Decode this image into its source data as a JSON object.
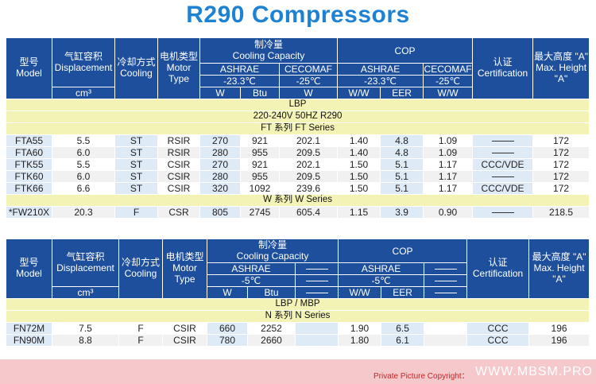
{
  "title": "R290 Compressors",
  "headers": {
    "model": [
      "型号",
      "Model"
    ],
    "displacement": [
      "气缸容积",
      "Displacement"
    ],
    "cooling": [
      "冷却方式",
      "Cooling"
    ],
    "motor": [
      "电机类型",
      "Motor",
      "Type"
    ],
    "capacity": [
      "制冷量",
      "Cooling Capacity"
    ],
    "cop": "COP",
    "cert": [
      "认证",
      "Certification"
    ],
    "height": [
      "最大高度 \"A\"",
      "Max. Height",
      "\"A\""
    ],
    "ashrae": "ASHRAE",
    "cecomaf": "CECOMAF",
    "temp_t1_ashrae": "-23.3℃",
    "temp_t1_cecomaf": "-25℃",
    "temp_t2": "-5℃",
    "unit_cm3": "cm³",
    "unit_w": "W",
    "unit_btu": "Btu",
    "unit_ww": "W/W",
    "unit_eer": "EER"
  },
  "table1": {
    "band1": "LBP",
    "band2": "220-240V 50HZ R290",
    "series1": "FT 系列 FT Series",
    "series2": "W 系列 W Series",
    "rows": [
      {
        "model": "FTA55",
        "disp": "5.5",
        "cool": "ST",
        "motor": "RSIR",
        "ash_w": "270",
        "ash_btu": "921",
        "cec_w": "202.1",
        "cop_ww": "1.40",
        "cop_eer": "4.8",
        "cec_ww": "1.09",
        "cert": "",
        "height": "172"
      },
      {
        "model": "FTA60",
        "disp": "6.0",
        "cool": "ST",
        "motor": "RSIR",
        "ash_w": "280",
        "ash_btu": "955",
        "cec_w": "209.5",
        "cop_ww": "1.40",
        "cop_eer": "4.8",
        "cec_ww": "1.09",
        "cert": "",
        "height": "172"
      },
      {
        "model": "FTK55",
        "disp": "5.5",
        "cool": "ST",
        "motor": "CSIR",
        "ash_w": "270",
        "ash_btu": "921",
        "cec_w": "202.1",
        "cop_ww": "1.50",
        "cop_eer": "5.1",
        "cec_ww": "1.17",
        "cert": "CCC/VDE",
        "height": "172"
      },
      {
        "model": "FTK60",
        "disp": "6.0",
        "cool": "ST",
        "motor": "CSIR",
        "ash_w": "280",
        "ash_btu": "955",
        "cec_w": "209.5",
        "cop_ww": "1.50",
        "cop_eer": "5.1",
        "cec_ww": "1.17",
        "cert": "",
        "height": "172"
      },
      {
        "model": "FTK66",
        "disp": "6.6",
        "cool": "ST",
        "motor": "CSIR",
        "ash_w": "320",
        "ash_btu": "1092",
        "cec_w": "239.6",
        "cop_ww": "1.50",
        "cop_eer": "5.1",
        "cec_ww": "1.17",
        "cert": "CCC/VDE",
        "height": "172"
      }
    ],
    "w_row": {
      "model": "*FW210X",
      "disp": "20.3",
      "cool": "F",
      "motor": "CSR",
      "ash_w": "805",
      "ash_btu": "2745",
      "cec_w": "605.4",
      "cop_ww": "1.15",
      "cop_eer": "3.9",
      "cec_ww": "0.90",
      "cert": "",
      "height": "218.5"
    }
  },
  "table2": {
    "band1": "LBP / MBP",
    "series1": "N 系列 N Series",
    "rows": [
      {
        "model": "FN72M",
        "disp": "7.5",
        "cool": "F",
        "motor": "CSIR",
        "ash_w": "660",
        "ash_btu": "2252",
        "cop_ww": "1.90",
        "cop_eer": "6.5",
        "cert": "CCC",
        "height": "196"
      },
      {
        "model": "FN90M",
        "disp": "8.8",
        "cool": "F",
        "motor": "CSIR",
        "ash_w": "780",
        "ash_btu": "2660",
        "cop_ww": "1.80",
        "cop_eer": "6.1",
        "cert": "CCC",
        "height": "196"
      }
    ]
  },
  "footer": {
    "label": "Private Picture Copyright：",
    "site": "WWW.MBSM.PRO"
  }
}
